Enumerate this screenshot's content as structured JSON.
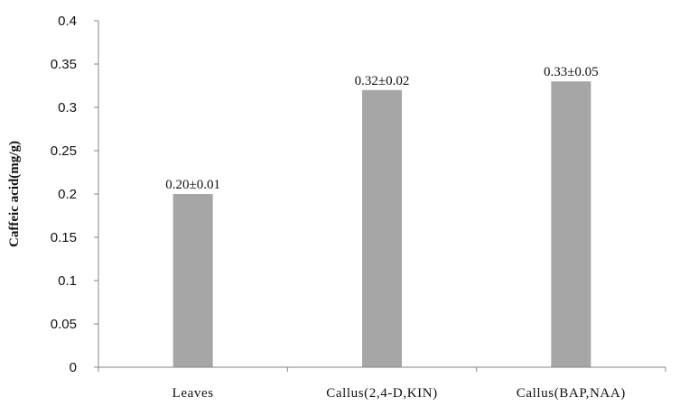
{
  "chart_data": {
    "type": "bar",
    "title": "",
    "xlabel": "",
    "ylabel": "Caffeic acid(mg/g)",
    "categories": [
      "Leaves",
      "Callus(2,4-D,KIN)",
      "Callus(BAP,NAA)"
    ],
    "values": [
      0.2,
      0.32,
      0.33
    ],
    "data_labels": [
      "0.20±0.01",
      "0.32±0.02",
      "0.33±0.05"
    ],
    "ylim": [
      0,
      0.4
    ],
    "yticks": [
      0,
      0.05,
      0.1,
      0.15,
      0.2,
      0.25,
      0.3,
      0.35,
      0.4
    ],
    "ytick_labels": [
      "0",
      "0.05",
      "0.1",
      "0.15",
      "0.2",
      "0.25",
      "0.3",
      "0.35",
      "0.4"
    ],
    "grid": false,
    "legend": "none",
    "bar_color": "#a6a6a6",
    "axis_color": "#868686"
  }
}
